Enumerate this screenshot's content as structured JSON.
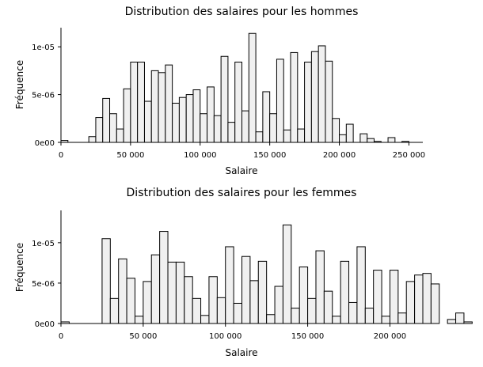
{
  "chart_data": [
    {
      "type": "bar",
      "title": "Distribution des salaires pour les hommes",
      "xlabel": "Salaire",
      "ylabel": "Fréquence",
      "xlim": [
        0,
        260000
      ],
      "ylim": [
        0,
        1.2e-05
      ],
      "grid": false,
      "bin_width": 5000,
      "bin_start": 0,
      "xticks": [
        0,
        50000,
        100000,
        150000,
        200000,
        250000
      ],
      "xtick_labels": [
        "0",
        "50 000",
        "100 000",
        "150 000",
        "200 000",
        "250 000"
      ],
      "yticks": [
        0,
        5e-06,
        1e-05
      ],
      "ytick_labels": [
        "0e00",
        "5e-06",
        "1e-05"
      ],
      "values": [
        2e-07,
        0,
        0,
        0,
        6e-07,
        2.6e-06,
        4.6e-06,
        3e-06,
        1.4e-06,
        5.6e-06,
        8.4e-06,
        8.4e-06,
        4.3e-06,
        7.5e-06,
        7.3e-06,
        8.1e-06,
        4.1e-06,
        4.7e-06,
        5e-06,
        5.5e-06,
        3e-06,
        5.8e-06,
        2.8e-06,
        9e-06,
        2.1e-06,
        8.4e-06,
        3.3e-06,
        1.14e-05,
        1.1e-06,
        5.3e-06,
        3e-06,
        8.7e-06,
        1.3e-06,
        9.4e-06,
        1.4e-06,
        8.4e-06,
        9.5e-06,
        1.01e-05,
        8.5e-06,
        2.5e-06,
        8e-07,
        1.9e-06,
        0,
        9e-07,
        4e-07,
        1e-07,
        0,
        5e-07,
        0,
        1e-07
      ]
    },
    {
      "type": "bar",
      "title": "Distribution des salaires pour les femmes",
      "xlabel": "Salaire",
      "ylabel": "Fréquence",
      "xlim": [
        0,
        220000
      ],
      "ylim": [
        0,
        1.4e-05
      ],
      "grid": false,
      "bin_width": 5000,
      "bin_start": 0,
      "xticks": [
        0,
        50000,
        100000,
        150000,
        200000
      ],
      "xtick_labels": [
        "0",
        "50 000",
        "100 000",
        "150 000",
        "200 000"
      ],
      "yticks": [
        0,
        5e-06,
        1e-05
      ],
      "ytick_labels": [
        "0e00",
        "5e-06",
        "1e-05"
      ],
      "values": [
        2e-07,
        0,
        0,
        0,
        0,
        1.05e-05,
        3.1e-06,
        8e-06,
        5.6e-06,
        9e-07,
        5.2e-06,
        8.5e-06,
        1.14e-05,
        7.6e-06,
        7.6e-06,
        5.8e-06,
        3.1e-06,
        1e-06,
        5.8e-06,
        3.2e-06,
        9.5e-06,
        2.5e-06,
        8.3e-06,
        5.3e-06,
        7.7e-06,
        1.1e-06,
        4.6e-06,
        1.22e-05,
        1.9e-06,
        7e-06,
        3.1e-06,
        9e-06,
        4e-06,
        9e-07,
        7.7e-06,
        2.6e-06,
        9.5e-06,
        1.9e-06,
        6.6e-06,
        9e-07,
        6.6e-06,
        1.3e-06,
        5.2e-06,
        6e-06,
        6.2e-06,
        4.9e-06,
        0,
        5e-07,
        1.3e-06,
        2e-07
      ]
    }
  ]
}
